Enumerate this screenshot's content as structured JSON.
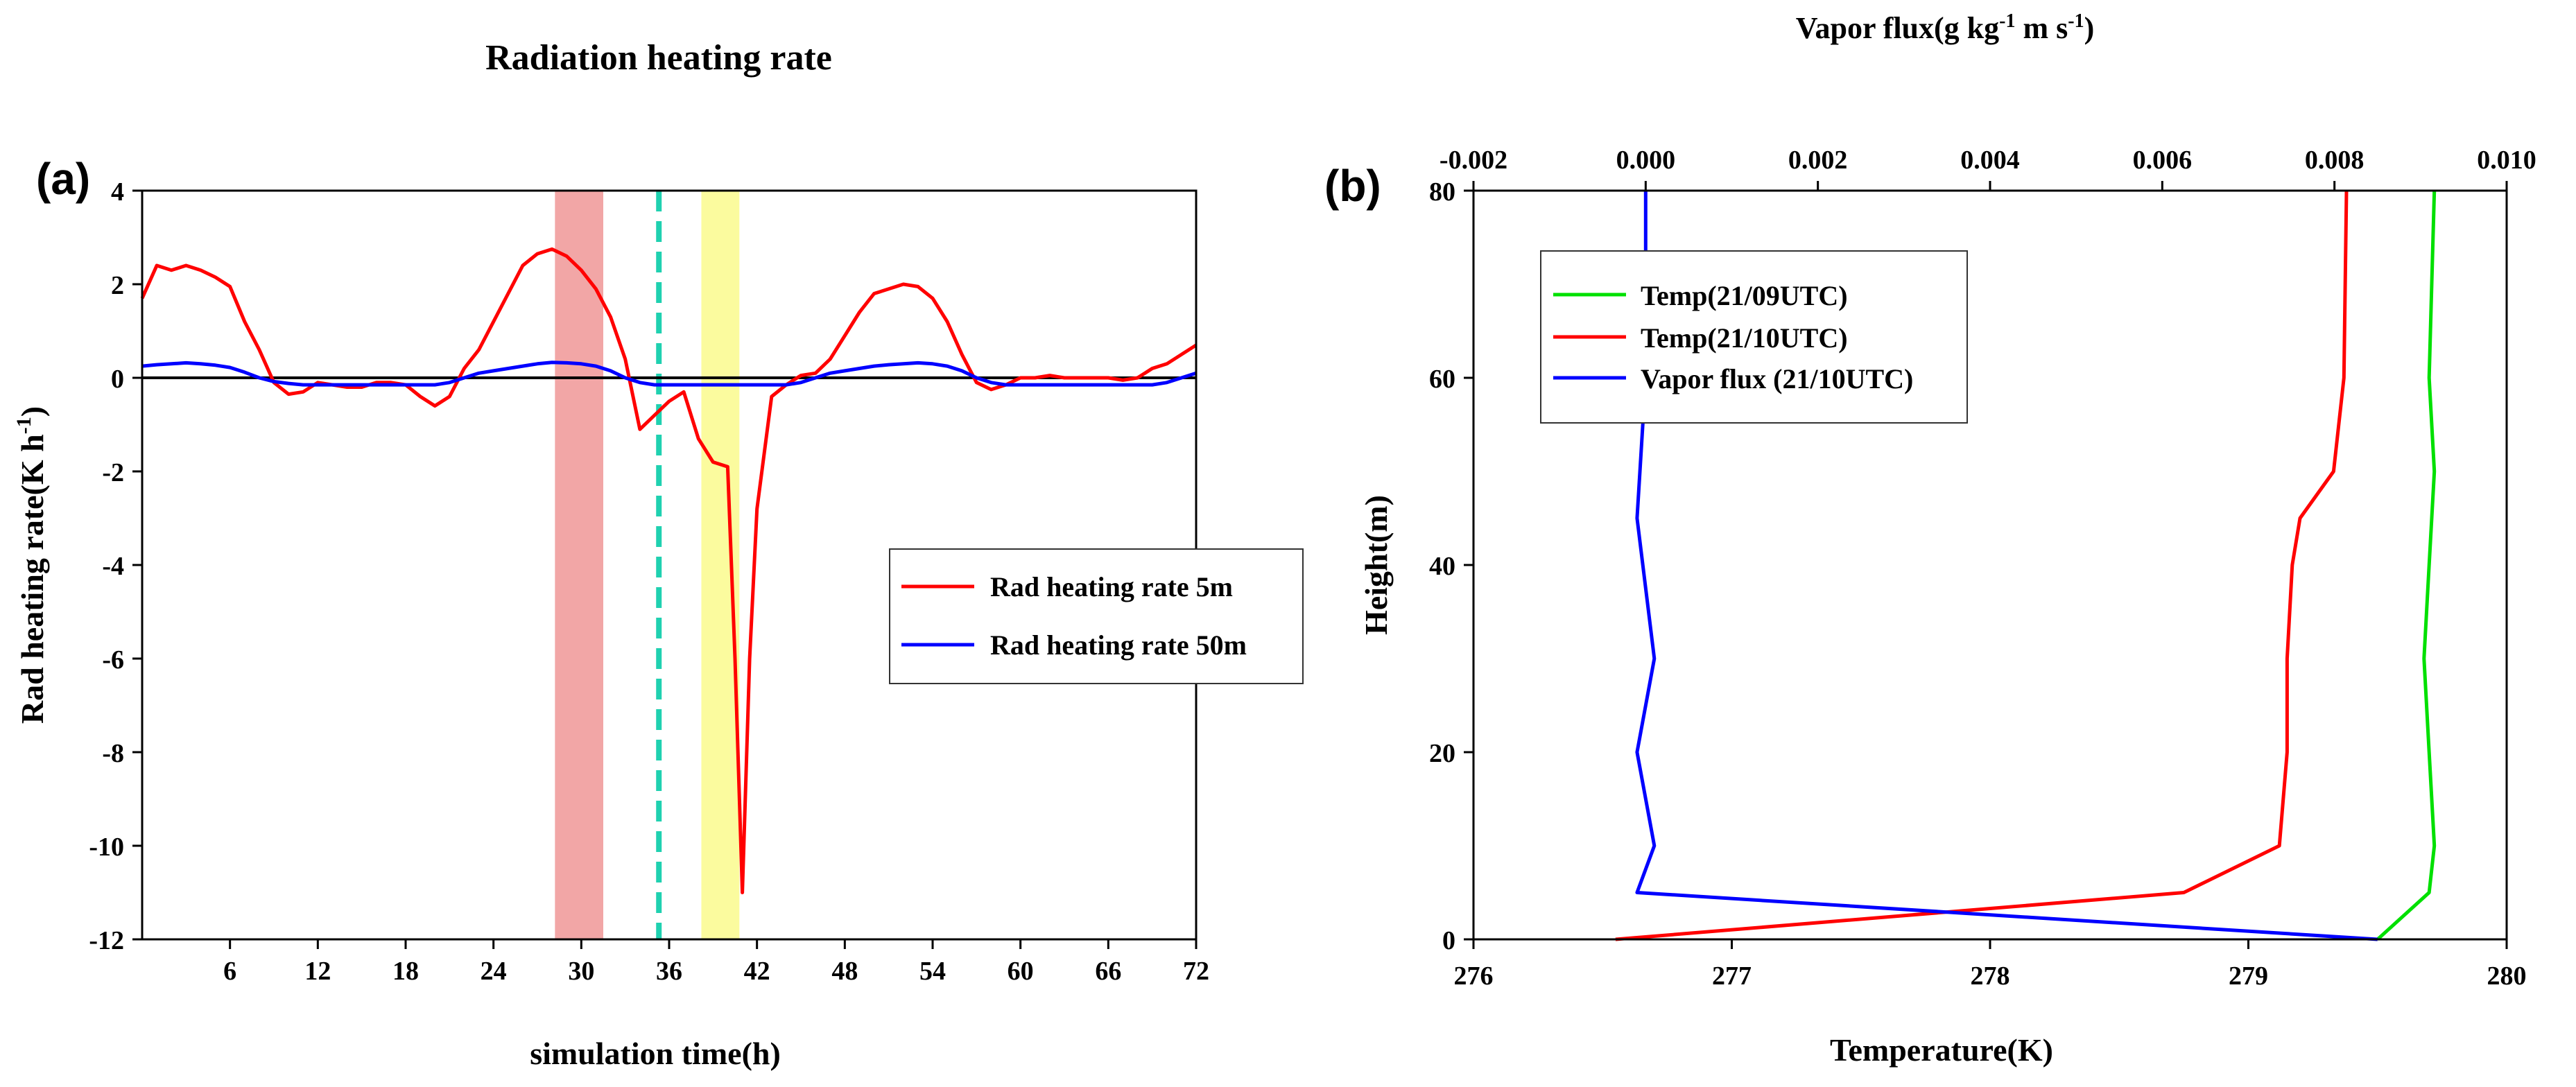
{
  "chart_data": [
    {
      "type": "line",
      "panel_label": "(a)",
      "title": "Radiation heating rate",
      "xlabel": "simulation time(h)",
      "ylabel": "Rad heating rate(K h",
      "ylabel_sup": "-1",
      "ylabel_close": ")",
      "xlim": [
        0,
        72
      ],
      "ylim": [
        -12,
        4
      ],
      "xticks": [
        6,
        12,
        18,
        24,
        30,
        36,
        42,
        48,
        54,
        60,
        66,
        72
      ],
      "yticks": [
        4,
        2,
        0,
        -2,
        -4,
        -6,
        -8,
        -10,
        -12
      ],
      "zero_line": 0,
      "shaded_regions": [
        {
          "x": [
            28.2,
            31.5
          ],
          "color": "#f2a6a6"
        },
        {
          "x": [
            38.2,
            40.8
          ],
          "color": "#fbfb9e"
        }
      ],
      "vertical_marker": {
        "x": 35.3,
        "color": "#1fd1b0"
      },
      "legend": {
        "placement": "center-right"
      },
      "series": [
        {
          "name": "Rad heating rate 5m",
          "color": "#ff0000",
          "x": [
            0,
            1,
            2,
            3,
            4,
            5,
            6,
            7,
            8,
            9,
            10,
            11,
            12,
            13,
            14,
            15,
            16,
            17,
            18,
            19,
            20,
            21,
            22,
            23,
            24,
            25,
            26,
            27,
            28,
            29,
            30,
            31,
            32,
            33,
            34,
            35,
            36,
            37,
            38,
            39,
            40,
            40.5,
            41,
            41.5,
            42,
            43,
            44,
            45,
            46,
            47,
            48,
            49,
            50,
            51,
            52,
            53,
            54,
            55,
            56,
            57,
            58,
            59,
            60,
            61,
            62,
            63,
            64,
            65,
            66,
            67,
            68,
            69,
            70,
            71,
            72
          ],
          "values": [
            1.7,
            2.4,
            2.3,
            2.4,
            2.3,
            2.15,
            1.95,
            1.2,
            0.6,
            -0.1,
            -0.35,
            -0.3,
            -0.1,
            -0.15,
            -0.2,
            -0.2,
            -0.1,
            -0.1,
            -0.15,
            -0.4,
            -0.6,
            -0.4,
            0.2,
            0.6,
            1.2,
            1.8,
            2.4,
            2.65,
            2.75,
            2.6,
            2.3,
            1.9,
            1.3,
            0.4,
            -1.1,
            -0.8,
            -0.5,
            -0.3,
            -1.3,
            -1.8,
            -1.9,
            -6.0,
            -11.0,
            -6.0,
            -2.8,
            -0.4,
            -0.15,
            0.05,
            0.1,
            0.4,
            0.9,
            1.4,
            1.8,
            1.9,
            2.0,
            1.95,
            1.7,
            1.2,
            0.5,
            -0.1,
            -0.25,
            -0.15,
            0.0,
            0.0,
            0.05,
            0.0,
            0.0,
            0.0,
            0.0,
            -0.05,
            0.0,
            0.2,
            0.3,
            0.5,
            0.7
          ]
        },
        {
          "name": "Rad heating rate 50m",
          "color": "#0000ff",
          "x": [
            0,
            1,
            2,
            3,
            4,
            5,
            6,
            7,
            8,
            9,
            10,
            11,
            12,
            13,
            14,
            15,
            16,
            17,
            18,
            19,
            20,
            21,
            22,
            23,
            24,
            25,
            26,
            27,
            28,
            29,
            30,
            31,
            32,
            33,
            34,
            35,
            36,
            37,
            38,
            39,
            40,
            41,
            42,
            43,
            44,
            45,
            46,
            47,
            48,
            49,
            50,
            51,
            52,
            53,
            54,
            55,
            56,
            57,
            58,
            59,
            60,
            61,
            62,
            63,
            64,
            65,
            66,
            67,
            68,
            69,
            70,
            71,
            72
          ],
          "values": [
            0.25,
            0.28,
            0.3,
            0.32,
            0.3,
            0.27,
            0.22,
            0.12,
            0.0,
            -0.08,
            -0.12,
            -0.15,
            -0.15,
            -0.15,
            -0.15,
            -0.15,
            -0.15,
            -0.15,
            -0.15,
            -0.15,
            -0.15,
            -0.1,
            0.0,
            0.1,
            0.15,
            0.2,
            0.25,
            0.3,
            0.33,
            0.32,
            0.3,
            0.25,
            0.15,
            0.0,
            -0.1,
            -0.15,
            -0.15,
            -0.15,
            -0.15,
            -0.15,
            -0.15,
            -0.15,
            -0.15,
            -0.15,
            -0.15,
            -0.1,
            0.0,
            0.1,
            0.15,
            0.2,
            0.25,
            0.28,
            0.3,
            0.32,
            0.3,
            0.25,
            0.15,
            0.0,
            -0.1,
            -0.15,
            -0.15,
            -0.15,
            -0.15,
            -0.15,
            -0.15,
            -0.15,
            -0.15,
            -0.15,
            -0.15,
            -0.15,
            -0.1,
            0.0,
            0.1
          ]
        }
      ]
    },
    {
      "type": "line",
      "panel_label": "(b)",
      "top_axis_title_prefix": "Vapor flux(g kg",
      "top_axis_title_sup1": "-1",
      "top_axis_title_mid": " m s",
      "top_axis_title_sup2": "-1",
      "top_axis_title_suffix": ")",
      "xlabel": "Temperature(K)",
      "ylabel": "Height(m)",
      "xlim": [
        276,
        280
      ],
      "xticks": [
        276,
        277,
        278,
        279,
        280
      ],
      "ylim": [
        0,
        80
      ],
      "yticks": [
        0,
        20,
        40,
        60,
        80
      ],
      "top_xlim": [
        -0.002,
        0.01
      ],
      "top_xticks": [
        -0.002,
        0.0,
        0.002,
        0.004,
        0.006,
        0.008,
        0.01
      ],
      "top_xtick_labels": [
        "-0.002",
        "0.000",
        "0.002",
        "0.004",
        "0.006",
        "0.008",
        "0.010"
      ],
      "legend": {
        "placement": "top-left"
      },
      "series": [
        {
          "name": "Temp(21/09UTC)",
          "color": "#00e000",
          "axis": "bottom",
          "x": [
            279.5,
            279.7,
            279.72,
            279.7,
            279.68,
            279.7,
            279.72,
            279.7,
            279.72
          ],
          "y": [
            0,
            5,
            10,
            20,
            30,
            40,
            50,
            60,
            80
          ]
        },
        {
          "name": "Temp(21/10UTC)",
          "color": "#ff0000",
          "axis": "bottom",
          "x": [
            276.55,
            278.75,
            279.12,
            279.15,
            279.15,
            279.17,
            279.2,
            279.33,
            279.37,
            279.38
          ],
          "y": [
            0,
            5,
            10,
            20,
            30,
            40,
            45,
            50,
            60,
            80
          ]
        },
        {
          "name": "Vapor flux (21/10UTC)",
          "color": "#0000ff",
          "axis": "top",
          "x": [
            0.0085,
            -0.0001,
            0.0001,
            -0.0001,
            0.0001,
            -0.0001,
            0.0,
            0.0,
            0.0
          ],
          "y": [
            0,
            5,
            10,
            20,
            30,
            45,
            60,
            70,
            80
          ]
        }
      ]
    }
  ]
}
